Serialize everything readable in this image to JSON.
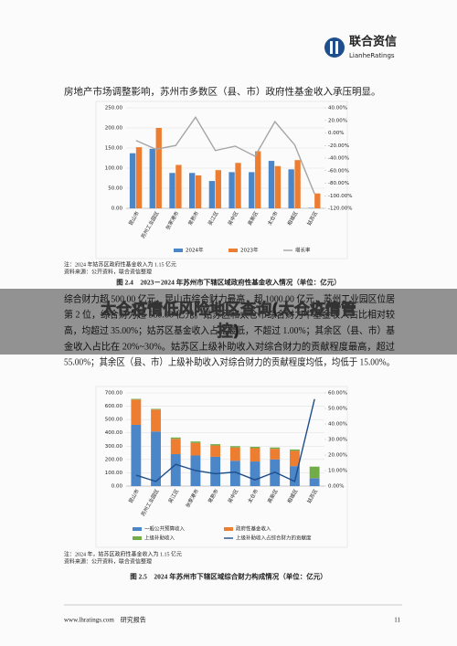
{
  "header": {
    "brand": "联合资信",
    "brand_en": "LianheRatings"
  },
  "intro": "房地产市场调整影响，苏州市多数区（县、市）政府性基金收入承压明显。",
  "banner": [
    "太仓疫情低风险地区查询(太仓疫情管",
    "控)"
  ],
  "paragraph": [
    "综合财力超 500.00 亿元，昆山市综合财力最高，超 1000.00 亿元，苏州工业园区位居",
    "第 2 位，综合财力超 580.00 亿元。姑苏区和太仓市综合财力中基金收入占比相对较",
    "高，均超过 35.00%；姑苏区基金收入占比最低，不超过 1.00%；其余区（县、市）基",
    "金收入占比在 20%~30%。姑苏区上级补助收入对综合财力的贡献程度最高，超过",
    "55.00%；其余区（县、市）上级补助收入对综合财力的贡献程度均低，均低于 15.00%。"
  ],
  "chart_data": [
    {
      "type": "bar",
      "title": "图 2.4　2023－2024 年苏州市下辖区域政府性基金收入情况（单位：亿元）",
      "note": "注：2024 年姑苏区政府性基金收入为 1.15 亿元",
      "source": "资料来源：公开资料，联合资信整理",
      "categories": [
        "昆山市",
        "苏州工业园区",
        "张家港市",
        "常熟市",
        "吴江区",
        "吴中区",
        "高新区",
        "太仓市",
        "相城区",
        "姑苏区"
      ],
      "series": [
        {
          "name": "2024年",
          "color": "#4a86c8",
          "values": [
            137,
            148,
            88,
            88,
            68,
            90,
            90,
            118,
            97,
            1.15
          ]
        },
        {
          "name": "2023年",
          "color": "#ed7d31",
          "values": [
            152,
            200,
            108,
            82,
            95,
            113,
            142,
            105,
            120,
            37
          ]
        },
        {
          "name": "增长率",
          "color": "#a5a5a5",
          "type": "line",
          "axis": "y2",
          "values": [
            -12,
            -26,
            -20,
            25,
            -28,
            -21,
            -37,
            18,
            -19,
            -97
          ]
        }
      ],
      "ylim": [
        0,
        250
      ],
      "yticks": [
        {
          "value": 0,
          "label": "0.00"
        },
        {
          "value": 50,
          "label": "50.00"
        },
        {
          "value": 100,
          "label": "100.00"
        },
        {
          "value": 150,
          "label": "150.00"
        },
        {
          "value": 200,
          "label": "200.00"
        },
        {
          "value": 250,
          "label": "250.00"
        }
      ],
      "y2lim": [
        -120,
        40
      ],
      "y2ticks": [
        {
          "value": -120,
          "label": "-120.00%"
        },
        {
          "value": -100,
          "label": "-100.00%"
        },
        {
          "value": -80,
          "label": "-80.00%"
        },
        {
          "value": -60,
          "label": "-60.00%"
        },
        {
          "value": -40,
          "label": "-40.00%"
        },
        {
          "value": -20,
          "label": "-20.00%"
        },
        {
          "value": 0,
          "label": "0.00%"
        },
        {
          "value": 20,
          "label": "20.00%"
        },
        {
          "value": 40,
          "label": "40.00%"
        }
      ],
      "grid": true,
      "stacked": false
    },
    {
      "type": "bar",
      "title": "图 2.5　2024 年苏州市下辖区域综合财力构成情况（单位：亿元）",
      "note": "注：2024 年，姑苏区政府性基金收入为 1.15 亿元",
      "source": "资料来源：公开资料，联合资信整理",
      "categories": [
        "昆山市",
        "苏州工业园区",
        "吴江区",
        "张家港市",
        "常熟市",
        "吴中区",
        "太仓市",
        "高新区",
        "相城区",
        "姑苏区"
      ],
      "series": [
        {
          "name": "一般公共预算收入",
          "color": "#4a86c8",
          "values": [
            460,
            410,
            240,
            230,
            220,
            190,
            185,
            200,
            150,
            60
          ]
        },
        {
          "name": "政府性基金收入",
          "color": "#ed7d31",
          "values": [
            190,
            165,
            115,
            95,
            85,
            100,
            100,
            80,
            115,
            1.15
          ]
        },
        {
          "name": "上级补助收入",
          "color": "#70ad47",
          "values": [
            5,
            5,
            10,
            10,
            10,
            10,
            10,
            10,
            10,
            85
          ]
        },
        {
          "name": "上级补助收入占综合财力的贡献度",
          "color": "#1f4e8c",
          "type": "line",
          "axis": "y2",
          "values": [
            7,
            3,
            14,
            10,
            8,
            9,
            4,
            9,
            3,
            56
          ]
        }
      ],
      "ylim": [
        0,
        700
      ],
      "yticks": [
        {
          "value": 0,
          "label": "0.00"
        },
        {
          "value": 100,
          "label": "100.00"
        },
        {
          "value": 200,
          "label": "200.00"
        },
        {
          "value": 300,
          "label": "300.00"
        },
        {
          "value": 400,
          "label": "400.00"
        },
        {
          "value": 500,
          "label": "500.00"
        },
        {
          "value": 600,
          "label": "600.00"
        },
        {
          "value": 700,
          "label": "700.00"
        }
      ],
      "y2lim": [
        0,
        60
      ],
      "y2ticks": [
        {
          "value": 0,
          "label": "0.00%"
        },
        {
          "value": 10,
          "label": "10.00%"
        },
        {
          "value": 20,
          "label": "20.00%"
        },
        {
          "value": 30,
          "label": "30.00%"
        },
        {
          "value": 40,
          "label": "40.00%"
        },
        {
          "value": 50,
          "label": "50.00%"
        },
        {
          "value": 60,
          "label": "60.00%"
        }
      ],
      "grid": true,
      "stacked": true
    }
  ],
  "footer": {
    "site": "www.lhratings.com　研究报告",
    "page": "11"
  }
}
